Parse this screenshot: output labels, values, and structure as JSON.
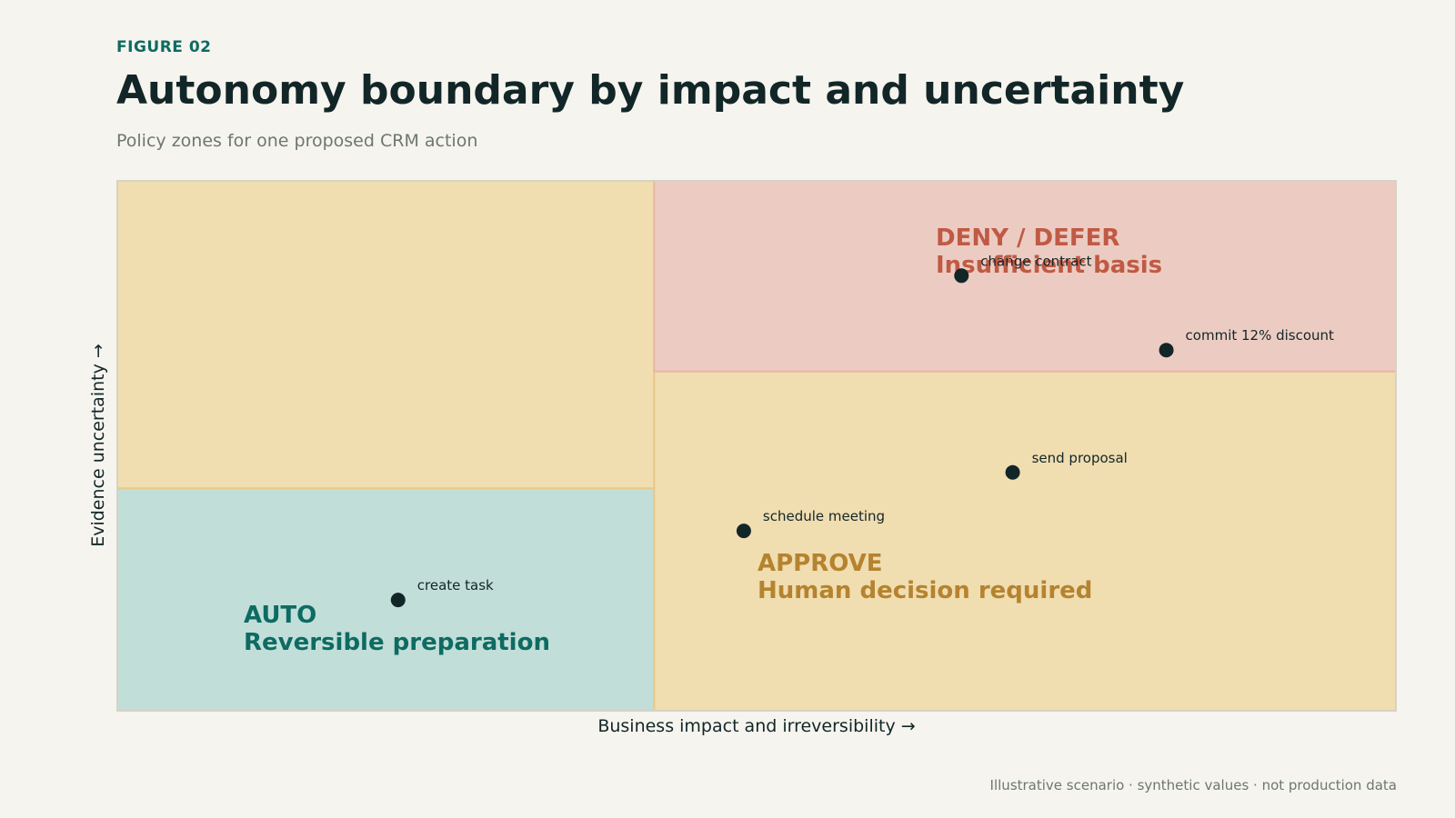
{
  "figure_label": "FIGURE 02",
  "title": "Autonomy boundary by impact and uncertainty",
  "subtitle": "Policy zones for one proposed CRM action",
  "footnote": "Illustrative scenario · synthetic values · not production data",
  "colors": {
    "auto_fill": "#c2ded8",
    "auto_text": "#0d6b63",
    "approve_fill": "#f0ddb0",
    "approve_text": "#b5832f",
    "deny_fill": "#ecccc2",
    "deny_text": "#c05a45",
    "point": "#122628"
  },
  "chart_data": {
    "type": "scatter",
    "xlabel": "Business impact and irreversibility →",
    "ylabel": "Evidence uncertainty →",
    "xlim": [
      0,
      1
    ],
    "ylim": [
      0,
      1
    ],
    "grid": false,
    "zones": [
      {
        "id": "auto",
        "x_range": [
          0,
          0.42
        ],
        "y_range": [
          0,
          0.42
        ],
        "lines": [
          "AUTO",
          "Reversible preparation"
        ]
      },
      {
        "id": "approve-left",
        "x_range": [
          0,
          0.42
        ],
        "y_range": [
          0.42,
          1
        ],
        "lines": []
      },
      {
        "id": "approve",
        "x_range": [
          0.42,
          1
        ],
        "y_range": [
          0,
          0.64
        ],
        "lines": [
          "APPROVE",
          "Human decision required"
        ]
      },
      {
        "id": "deny",
        "x_range": [
          0.42,
          1
        ],
        "y_range": [
          0.64,
          1
        ],
        "lines": [
          "DENY / DEFER",
          "Insufficient basis"
        ]
      }
    ],
    "points": [
      {
        "label": "create task",
        "x": 0.22,
        "y": 0.21
      },
      {
        "label": "schedule meeting",
        "x": 0.49,
        "y": 0.34
      },
      {
        "label": "send proposal",
        "x": 0.7,
        "y": 0.45
      },
      {
        "label": "commit 12% discount",
        "x": 0.82,
        "y": 0.68
      },
      {
        "label": "change contract",
        "x": 0.66,
        "y": 0.82
      }
    ]
  }
}
